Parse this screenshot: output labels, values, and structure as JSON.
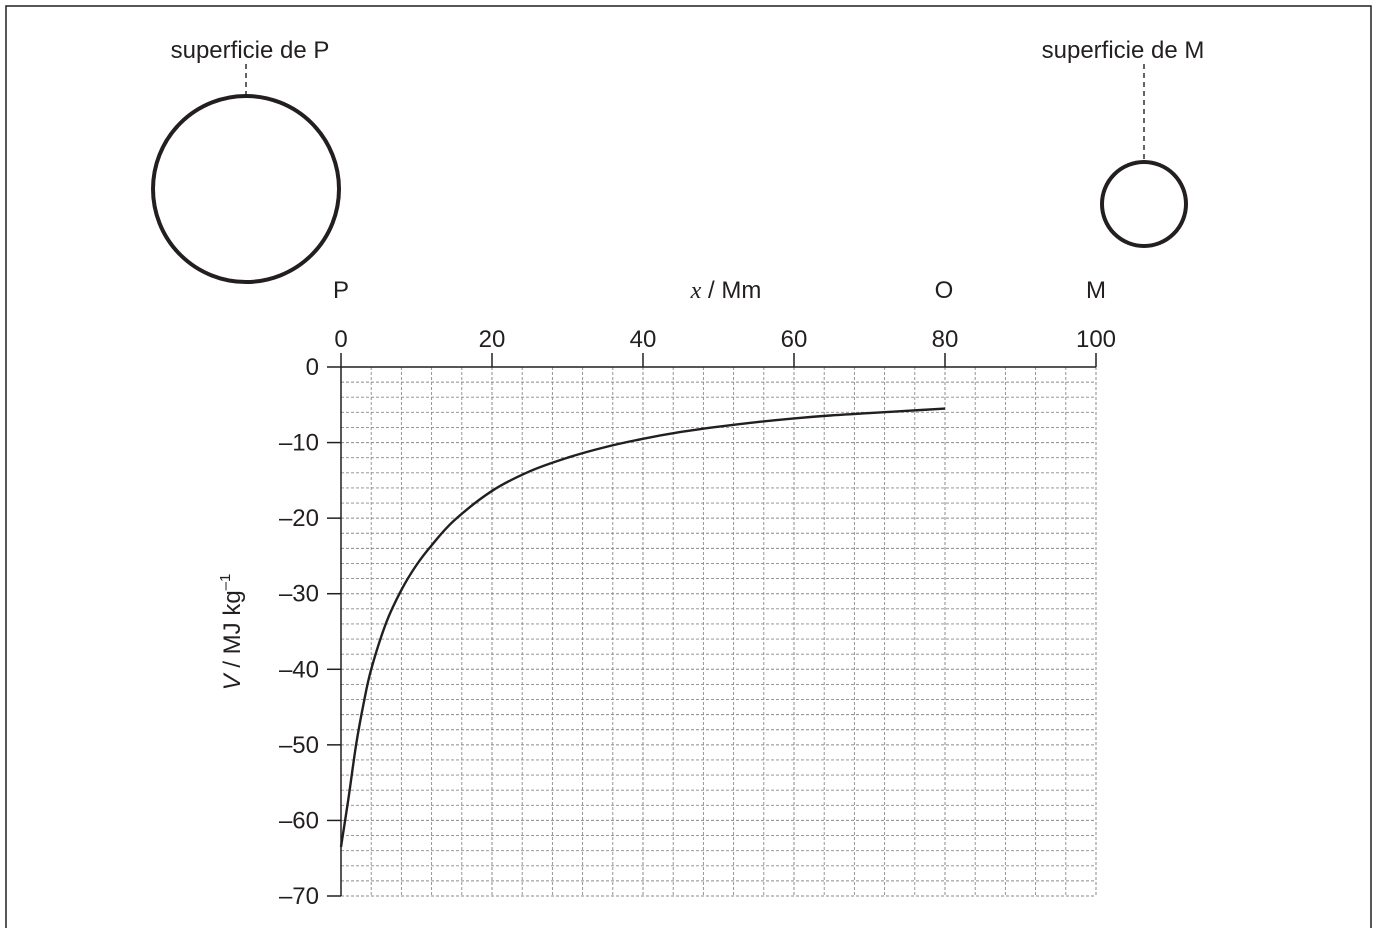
{
  "labels": {
    "surface_p": "superficie de P",
    "surface_m": "superficie de M",
    "point_p": "P",
    "point_o": "O",
    "point_m": "M",
    "x_axis_var": "x",
    "x_axis_unit": " / Mm",
    "y_axis_var": "V",
    "y_axis_unit": " / MJ kg",
    "y_axis_exp": "–1"
  },
  "chart_data": {
    "type": "line",
    "xlabel": "x / Mm",
    "ylabel": "V / MJ kg–1",
    "xlim": [
      0,
      100
    ],
    "ylim": [
      -70,
      0
    ],
    "x_ticks": [
      0,
      20,
      40,
      60,
      80,
      100
    ],
    "x_tick_labels": [
      "0",
      "20",
      "40",
      "60",
      "80",
      "100"
    ],
    "y_ticks": [
      0,
      -10,
      -20,
      -30,
      -40,
      -50,
      -60,
      -70
    ],
    "y_tick_labels": [
      "0",
      "–10",
      "–20",
      "–30",
      "–40",
      "–50",
      "–60",
      "–70"
    ],
    "grid": true,
    "axis_position": "x axis on top",
    "series": [
      {
        "x": [
          0,
          1,
          2,
          3,
          4,
          6,
          8,
          10,
          12,
          15,
          20,
          25,
          30,
          35,
          40,
          45,
          50,
          55,
          60,
          65,
          70,
          75,
          80
        ],
        "y": [
          -63.5,
          -57.0,
          -50.0,
          -44.5,
          -40.0,
          -33.8,
          -29.5,
          -26.2,
          -23.6,
          -20.3,
          -16.4,
          -13.8,
          -12.0,
          -10.6,
          -9.5,
          -8.6,
          -7.9,
          -7.3,
          -6.8,
          -6.4,
          -6.1,
          -5.8,
          -5.5
        ],
        "color": "#231f20"
      }
    ]
  }
}
